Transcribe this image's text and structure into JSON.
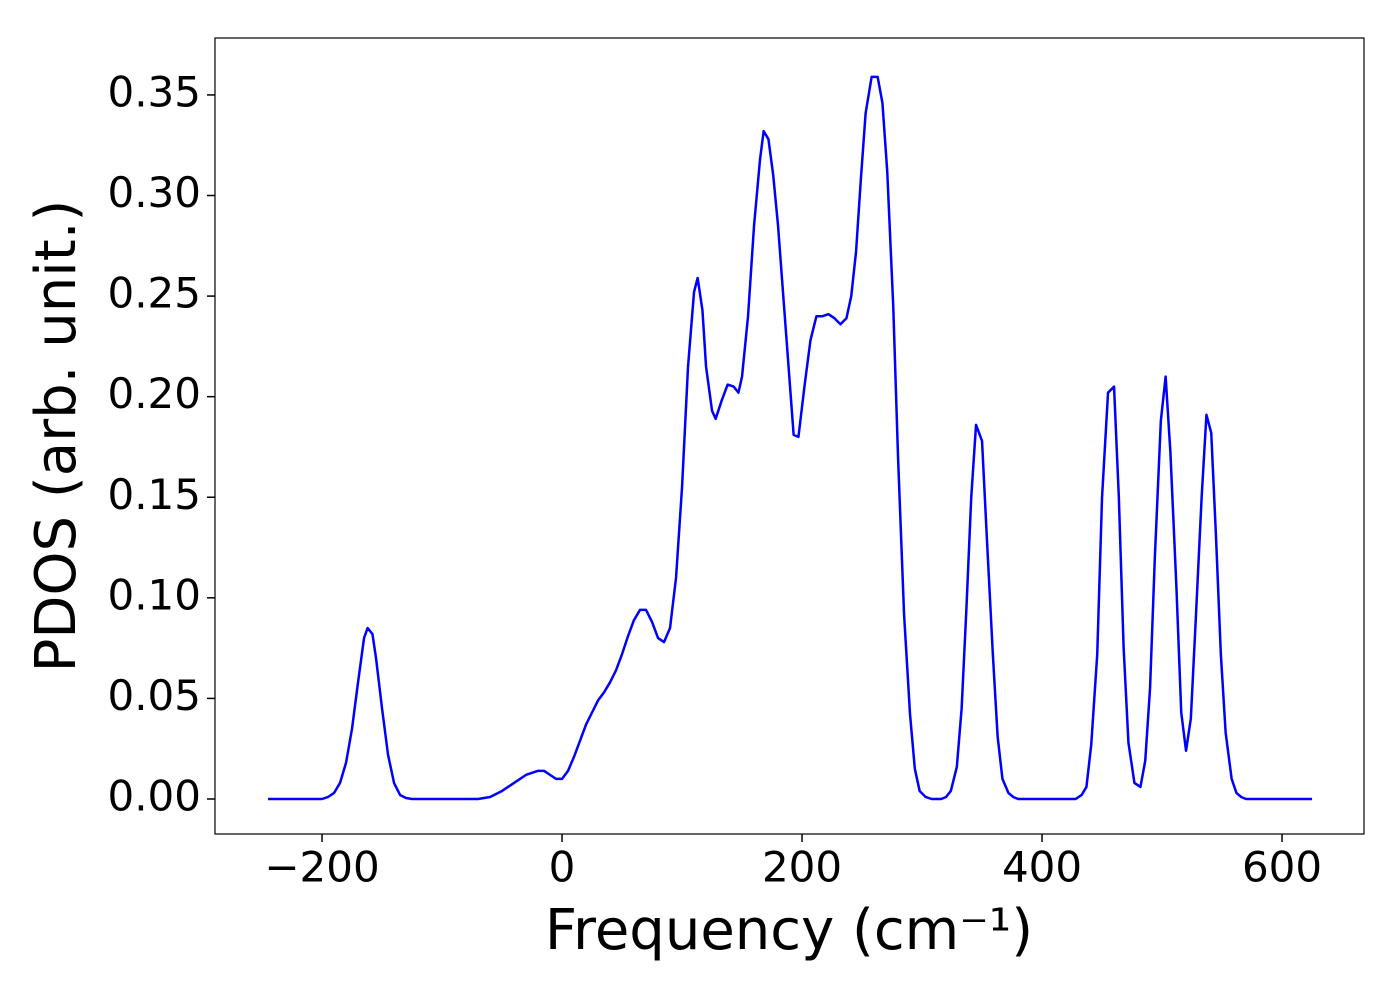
{
  "chart_data": {
    "type": "line",
    "xlabel": "Frequency (cm⁻¹)",
    "ylabel": "PDOS (arb. unit.)",
    "x": [
      -245,
      -200,
      -195,
      -190,
      -185,
      -180,
      -175,
      -170,
      -165,
      -162,
      -158,
      -155,
      -150,
      -145,
      -140,
      -135,
      -130,
      -125,
      -70,
      -60,
      -50,
      -40,
      -30,
      -20,
      -15,
      -10,
      -5,
      0,
      5,
      10,
      15,
      20,
      25,
      30,
      35,
      40,
      45,
      50,
      55,
      60,
      65,
      70,
      75,
      80,
      85,
      90,
      95,
      100,
      105,
      110,
      113,
      117,
      120,
      125,
      128,
      133,
      138,
      143,
      147,
      150,
      155,
      160,
      165,
      168,
      172,
      176,
      180,
      185,
      190,
      193,
      197,
      202,
      207,
      212,
      217,
      222,
      227,
      232,
      237,
      241,
      245,
      249,
      253,
      258,
      263,
      267,
      271,
      276,
      280,
      285,
      290,
      294,
      298,
      303,
      308,
      316,
      320,
      324,
      329,
      333,
      337,
      341,
      345,
      350,
      354,
      359,
      363,
      367,
      372,
      376,
      380,
      428,
      433,
      437,
      441,
      446,
      450,
      455,
      460,
      464,
      468,
      472,
      477,
      482,
      486,
      490,
      494,
      499,
      503,
      507,
      512,
      516,
      520,
      524,
      528,
      533,
      537,
      541,
      545,
      549,
      553,
      558,
      562,
      566,
      570,
      625
    ],
    "values": [
      0,
      0,
      0.001,
      0.003,
      0.008,
      0.018,
      0.035,
      0.058,
      0.08,
      0.085,
      0.082,
      0.07,
      0.045,
      0.022,
      0.008,
      0.002,
      0.0005,
      0,
      0,
      0.001,
      0.004,
      0.008,
      0.012,
      0.014,
      0.014,
      0.012,
      0.01,
      0.01,
      0.014,
      0.021,
      0.029,
      0.037,
      0.043,
      0.049,
      0.053,
      0.058,
      0.064,
      0.072,
      0.081,
      0.089,
      0.094,
      0.094,
      0.088,
      0.08,
      0.078,
      0.085,
      0.11,
      0.155,
      0.215,
      0.252,
      0.259,
      0.243,
      0.215,
      0.193,
      0.189,
      0.198,
      0.206,
      0.205,
      0.202,
      0.21,
      0.24,
      0.285,
      0.318,
      0.332,
      0.328,
      0.31,
      0.285,
      0.245,
      0.205,
      0.181,
      0.18,
      0.205,
      0.228,
      0.24,
      0.24,
      0.241,
      0.239,
      0.236,
      0.239,
      0.25,
      0.272,
      0.308,
      0.341,
      0.359,
      0.359,
      0.346,
      0.312,
      0.245,
      0.17,
      0.092,
      0.042,
      0.015,
      0.004,
      0.001,
      0,
      0,
      0.001,
      0.004,
      0.016,
      0.045,
      0.095,
      0.15,
      0.186,
      0.178,
      0.13,
      0.072,
      0.031,
      0.01,
      0.003,
      0.001,
      0,
      0,
      0.002,
      0.006,
      0.027,
      0.072,
      0.15,
      0.202,
      0.205,
      0.15,
      0.075,
      0.028,
      0.008,
      0.006,
      0.019,
      0.055,
      0.12,
      0.188,
      0.21,
      0.172,
      0.105,
      0.043,
      0.024,
      0.04,
      0.088,
      0.15,
      0.191,
      0.182,
      0.13,
      0.072,
      0.033,
      0.01,
      0.003,
      0.001,
      0,
      0
    ],
    "color": "#0000ff",
    "xlim": [
      -289.2,
      668.3
    ],
    "ylim": [
      -0.0174,
      0.3783
    ],
    "xticks": [
      {
        "value": -200,
        "label": "−200"
      },
      0,
      200,
      400,
      600
    ],
    "yticks": [
      {
        "value": 0,
        "label": "0.00"
      },
      0.05,
      {
        "value": 0.1,
        "label": "0.10"
      },
      0.15,
      {
        "value": 0.2,
        "label": "0.20"
      },
      0.25,
      {
        "value": 0.3,
        "label": "0.30"
      },
      0.35
    ],
    "grid": false
  }
}
